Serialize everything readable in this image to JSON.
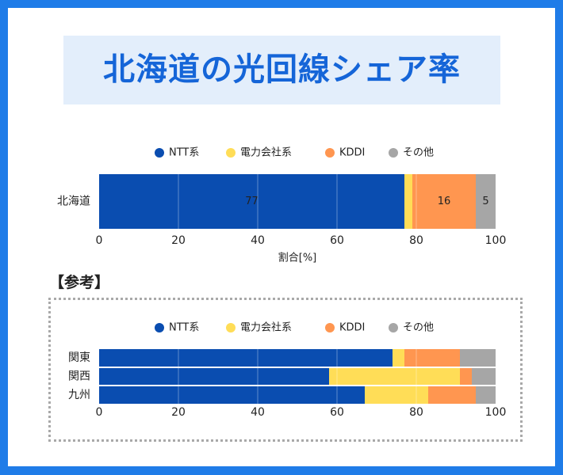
{
  "title": "北海道の光回線シェア率",
  "legend": [
    {
      "name": "NTT系",
      "color": "#0A4DB0"
    },
    {
      "name": "電力会社系",
      "color": "#FFDD57"
    },
    {
      "name": "KDDI",
      "color": "#FF9650"
    },
    {
      "name": "その他",
      "color": "#A6A6A6"
    }
  ],
  "reference_heading": "【参考】",
  "chart_data": [
    {
      "type": "bar",
      "orientation": "horizontal",
      "stacked": true,
      "categories": [
        "北海道"
      ],
      "series": [
        {
          "name": "NTT系",
          "values": [
            77
          ]
        },
        {
          "name": "電力会社系",
          "values": [
            2
          ]
        },
        {
          "name": "KDDI",
          "values": [
            16
          ]
        },
        {
          "name": "その他",
          "values": [
            5
          ]
        }
      ],
      "data_labels": [
        [
          "77"
        ],
        [
          ""
        ],
        [
          "16"
        ],
        [
          "5"
        ]
      ],
      "xlabel": "割合[%]",
      "xlim": [
        0,
        100
      ],
      "xticks": [
        0,
        20,
        40,
        60,
        80,
        100
      ],
      "grid": true,
      "legend_position": "top"
    },
    {
      "type": "bar",
      "orientation": "horizontal",
      "stacked": true,
      "categories": [
        "関東",
        "関西",
        "九州"
      ],
      "series": [
        {
          "name": "NTT系",
          "values": [
            74,
            58,
            67
          ]
        },
        {
          "name": "電力会社系",
          "values": [
            3,
            33,
            16
          ]
        },
        {
          "name": "KDDI",
          "values": [
            14,
            3,
            12
          ]
        },
        {
          "name": "その他",
          "values": [
            9,
            6,
            5
          ]
        }
      ],
      "xlabel": "",
      "xlim": [
        0,
        100
      ],
      "xticks": [
        0,
        20,
        40,
        60,
        80,
        100
      ],
      "grid": true,
      "legend_position": "top"
    }
  ]
}
